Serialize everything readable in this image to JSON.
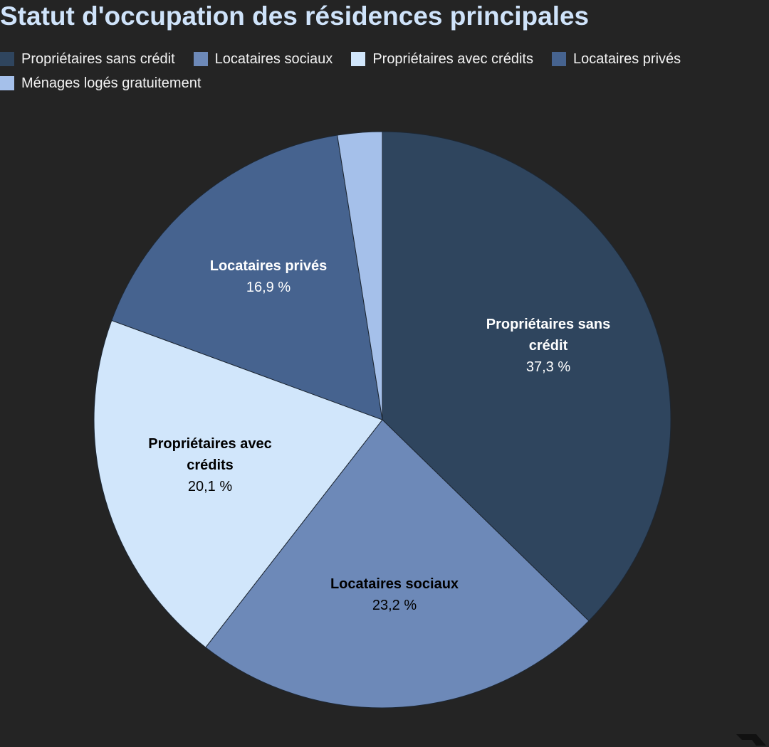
{
  "title": "Statut d'occupation des résidences principales",
  "chart_data": {
    "type": "pie",
    "title": "Statut d'occupation des résidences principales",
    "legend_position": "top",
    "slices": [
      {
        "label": "Propriétaires sans crédit",
        "value": 37.3,
        "display": "37,3 %",
        "color": "#2f455e",
        "text_color": "#ffffff",
        "name_lines": [
          "Propriétaires sans",
          "crédit"
        ]
      },
      {
        "label": "Locataires sociaux",
        "value": 23.2,
        "display": "23,2 %",
        "color": "#6d89b8",
        "text_color": "#000000",
        "name_lines": [
          "Locataires sociaux"
        ]
      },
      {
        "label": "Propriétaires avec crédits",
        "value": 20.1,
        "display": "20,1 %",
        "color": "#d1e6fb",
        "text_color": "#000000",
        "name_lines": [
          "Propriétaires avec",
          "crédits"
        ]
      },
      {
        "label": "Locataires privés",
        "value": 16.9,
        "display": "16,9 %",
        "color": "#46638f",
        "text_color": "#ffffff",
        "name_lines": [
          "Locataires privés"
        ]
      },
      {
        "label": "Ménages logés gratuitement",
        "value": 2.5,
        "display": "",
        "color": "#a5c0ea",
        "text_color": "#000000",
        "name_lines": []
      }
    ]
  }
}
